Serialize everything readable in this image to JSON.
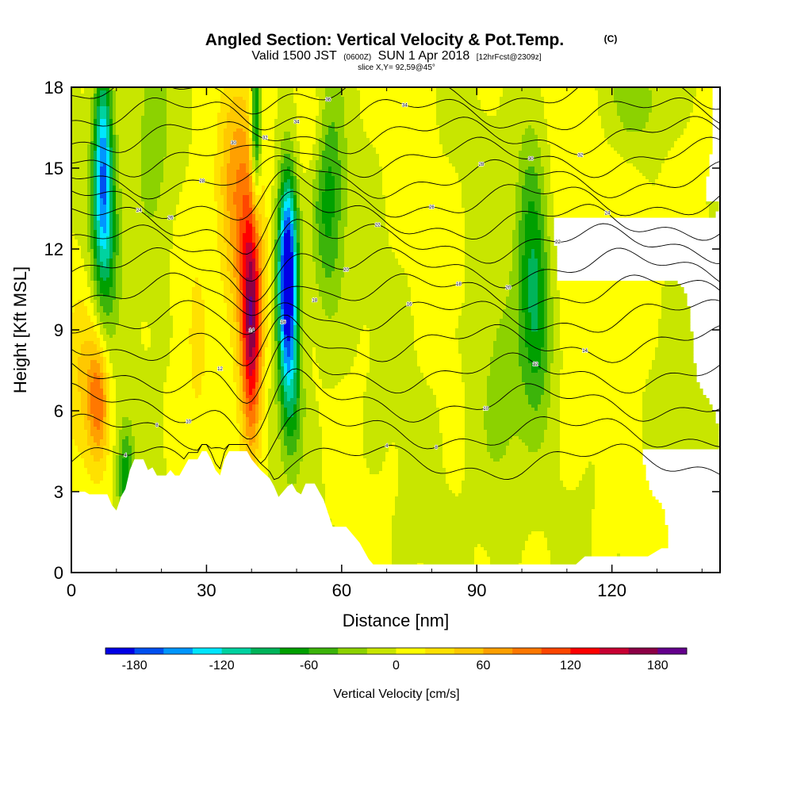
{
  "header": {
    "title": "Angled Section: Vertical Velocity & Pot.Temp.",
    "title_unit": "(C)",
    "valid_prefix": "Valid 1500 JST",
    "valid_utc": "(0600Z)",
    "valid_date": "SUN 1 Apr 2018",
    "forecast": "[12hrFcst@2309z]",
    "slice": "slice X,Y= 92,59@45°"
  },
  "chart_data": {
    "type": "heatmap",
    "xlabel": "Distance [nm]",
    "ylabel": "Height [Kft MSL]",
    "xlim": [
      0,
      144
    ],
    "ylim": [
      0,
      18
    ],
    "x_ticks": [
      0,
      30,
      60,
      90,
      120
    ],
    "y_ticks": [
      0,
      3,
      6,
      9,
      12,
      15,
      18
    ],
    "x_tick_labels": [
      "0",
      "30",
      "60",
      "90",
      "120"
    ],
    "y_tick_labels": [
      "0",
      "3",
      "6",
      "9",
      "12",
      "15",
      "18"
    ],
    "colorbar": {
      "title": "Vertical Velocity [cm/s]",
      "min": -200,
      "max": 200,
      "step": 20,
      "tick_values": [
        -180,
        -120,
        -60,
        0,
        60,
        120,
        180
      ],
      "tick_labels": [
        "-180",
        "-120",
        "-60",
        "0",
        "60",
        "120",
        "180"
      ],
      "colors": [
        "#0000e6",
        "#0050f0",
        "#0096ff",
        "#00e6ff",
        "#00d2a0",
        "#00b45a",
        "#00a000",
        "#3cb40a",
        "#8cd200",
        "#c8e600",
        "#ffff00",
        "#ffe100",
        "#ffc800",
        "#ffa000",
        "#ff7800",
        "#ff4600",
        "#ff0000",
        "#c80032",
        "#8c0046",
        "#64008c"
      ]
    },
    "terrain": [
      [
        0,
        3
      ],
      [
        2,
        3
      ],
      [
        3,
        3
      ],
      [
        4,
        2.9
      ],
      [
        6,
        2.9
      ],
      [
        8,
        2.9
      ],
      [
        9,
        2.5
      ],
      [
        10,
        2.3
      ],
      [
        11,
        2.8
      ],
      [
        12,
        3.1
      ],
      [
        13,
        3.8
      ],
      [
        14,
        4.2
      ],
      [
        16,
        4.2
      ],
      [
        17,
        3.8
      ],
      [
        18,
        3.9
      ],
      [
        19,
        3.6
      ],
      [
        21,
        3.6
      ],
      [
        22,
        3.8
      ],
      [
        23,
        3.6
      ],
      [
        24,
        3.6
      ],
      [
        25,
        3.9
      ],
      [
        26,
        4.2
      ],
      [
        28,
        4.2
      ],
      [
        29,
        4.5
      ],
      [
        30,
        4.5
      ],
      [
        31,
        4.2
      ],
      [
        32,
        3.8
      ],
      [
        33,
        3.6
      ],
      [
        34,
        4.2
      ],
      [
        35,
        4.5
      ],
      [
        37,
        4.5
      ],
      [
        39,
        4.5
      ],
      [
        40,
        4.2
      ],
      [
        42,
        3.8
      ],
      [
        44,
        3.5
      ],
      [
        45,
        3.2
      ],
      [
        46,
        2.8
      ],
      [
        47,
        3.0
      ],
      [
        48,
        3.2
      ],
      [
        49,
        3.3
      ],
      [
        50,
        3.0
      ],
      [
        51,
        2.9
      ],
      [
        52,
        3.3
      ],
      [
        54,
        3.3
      ],
      [
        55,
        3.0
      ],
      [
        56,
        2.7
      ],
      [
        57,
        2.2
      ],
      [
        58,
        1.7
      ],
      [
        61,
        1.7
      ],
      [
        63,
        1.3
      ],
      [
        64,
        1.1
      ],
      [
        65,
        0.8
      ],
      [
        66,
        0.5
      ],
      [
        67,
        0.3
      ],
      [
        112,
        0.3
      ],
      [
        114,
        0.6
      ],
      [
        128,
        0.6
      ],
      [
        131,
        0.9
      ],
      [
        138,
        0.9
      ],
      [
        139,
        1.2
      ],
      [
        144,
        1.2
      ]
    ],
    "updrafts": [
      {
        "x": 40,
        "y": 9,
        "sx": 1.6,
        "sy": 3.2,
        "amp": 150
      },
      {
        "x": 38,
        "y": 12,
        "sx": 3,
        "sy": 3,
        "amp": 60
      },
      {
        "x": 36,
        "y": 15.5,
        "sx": 3,
        "sy": 2.5,
        "amp": 45
      },
      {
        "x": 6,
        "y": 6.3,
        "sx": 1.6,
        "sy": 1.5,
        "amp": 80
      },
      {
        "x": 3,
        "y": 7.5,
        "sx": 3,
        "sy": 2.5,
        "amp": 40
      },
      {
        "x": 28,
        "y": 9,
        "sx": 2,
        "sy": 4,
        "amp": 20
      },
      {
        "x": 54,
        "y": 16.5,
        "sx": 2.5,
        "sy": 1.5,
        "amp": 30
      },
      {
        "x": 120,
        "y": 14,
        "sx": 6,
        "sy": 4,
        "amp": 18
      },
      {
        "x": 105,
        "y": 12,
        "sx": 6,
        "sy": 6,
        "amp": 8
      }
    ],
    "downdrafts": [
      {
        "x": 7,
        "y": 15.5,
        "sx": 1.4,
        "sy": 2.5,
        "amp": 120
      },
      {
        "x": 7.5,
        "y": 12.5,
        "sx": 2.2,
        "sy": 2.5,
        "amp": 80
      },
      {
        "x": 48,
        "y": 12,
        "sx": 1.5,
        "sy": 2.2,
        "amp": 160
      },
      {
        "x": 48,
        "y": 9.5,
        "sx": 1.5,
        "sy": 2.2,
        "amp": 110
      },
      {
        "x": 49,
        "y": 6.5,
        "sx": 1.8,
        "sy": 2,
        "amp": 60
      },
      {
        "x": 41,
        "y": 16.5,
        "sx": 0.8,
        "sy": 2,
        "amp": 110
      },
      {
        "x": 57,
        "y": 14,
        "sx": 2.5,
        "sy": 3,
        "amp": 70
      },
      {
        "x": 12,
        "y": 3.6,
        "sx": 1.3,
        "sy": 1.3,
        "amp": 70
      },
      {
        "x": 102,
        "y": 12,
        "sx": 2.5,
        "sy": 3.5,
        "amp": 70
      },
      {
        "x": 104,
        "y": 9,
        "sx": 2.2,
        "sy": 2.5,
        "amp": 45
      },
      {
        "x": 125,
        "y": 17.5,
        "sx": 5,
        "sy": 1.5,
        "amp": 40
      },
      {
        "x": 18,
        "y": 16,
        "sx": 3,
        "sy": 3,
        "amp": 35
      },
      {
        "x": 95,
        "y": 6,
        "sx": 4,
        "sy": 3,
        "amp": 30
      }
    ],
    "isentropes": [
      {
        "base": 4.1,
        "label": "4"
      },
      {
        "base": 5.2,
        "label": "8"
      },
      {
        "base": 6.3,
        "label": "10"
      },
      {
        "base": 7.4,
        "label": "12"
      },
      {
        "base": 8.5,
        "label": "14"
      },
      {
        "base": 9.5,
        "label": "16"
      },
      {
        "base": 10.4,
        "label": "18"
      },
      {
        "base": 11.3,
        "label": "20"
      },
      {
        "base": 12.2,
        "label": "22"
      },
      {
        "base": 13.0,
        "label": "24"
      },
      {
        "base": 13.8,
        "label": "26"
      },
      {
        "base": 14.6,
        "label": "28"
      },
      {
        "base": 15.4,
        "label": "30"
      },
      {
        "base": 16.2,
        "label": "32"
      },
      {
        "base": 17.0,
        "label": "34"
      },
      {
        "base": 17.8,
        "label": "36"
      }
    ]
  }
}
